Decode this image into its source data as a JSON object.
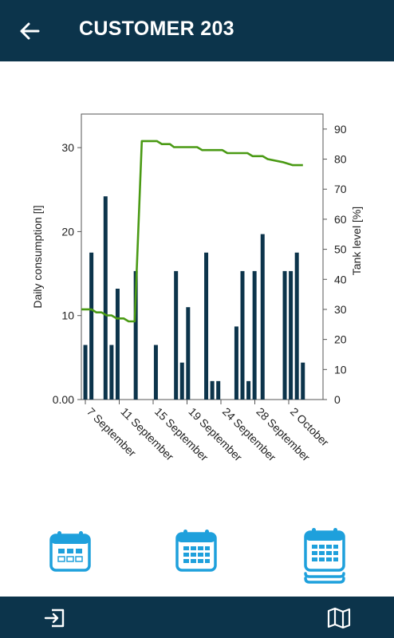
{
  "header": {
    "title": "CUSTOMER 203"
  },
  "colors": {
    "header_bg": "#0c344b",
    "bar": "#0c344b",
    "line": "#4a9a14",
    "tab_icon": "#1ea0dc"
  },
  "icons": {
    "back": "arrow-left-icon",
    "logout": "exit-icon",
    "map": "map-icon",
    "tab_week": "calendar-week-icon",
    "tab_month": "calendar-month-icon",
    "tab_multi": "calendar-stack-icon"
  },
  "chart_data": {
    "type": "bar+line",
    "ylabel_left": "Daily consumption [l]",
    "ylabel_right": "Tank level [%]",
    "yleft_ticks": [
      "0.00",
      "10",
      "20",
      "30"
    ],
    "yright_ticks": [
      "0",
      "10",
      "20",
      "30",
      "40",
      "50",
      "60",
      "70",
      "80",
      "90"
    ],
    "ylim_left": [
      0,
      34
    ],
    "ylim_right": [
      0,
      95
    ],
    "xlim_days": [
      6,
      30
    ],
    "x_ticks": [
      {
        "label": "7 September",
        "day": 7
      },
      {
        "label": "11 September",
        "day": 11
      },
      {
        "label": "15 September",
        "day": 15
      },
      {
        "label": "19 September",
        "day": 19
      },
      {
        "label": "24 September",
        "day": 24
      },
      {
        "label": "28 September",
        "day": 28
      },
      {
        "label": "2 October",
        "day": 32
      }
    ],
    "bars": [
      {
        "day": 6.4,
        "value": 6.5
      },
      {
        "day": 7.0,
        "value": 17.5
      },
      {
        "day": 8.4,
        "value": 24.2
      },
      {
        "day": 9.0,
        "value": 6.5
      },
      {
        "day": 9.6,
        "value": 13.2
      },
      {
        "day": 11.4,
        "value": 15.3
      },
      {
        "day": 13.4,
        "value": 6.5
      },
      {
        "day": 15.4,
        "value": 15.3
      },
      {
        "day": 16.0,
        "value": 4.4
      },
      {
        "day": 16.6,
        "value": 11.0
      },
      {
        "day": 18.4,
        "value": 17.5
      },
      {
        "day": 19.0,
        "value": 2.2
      },
      {
        "day": 19.6,
        "value": 2.2
      },
      {
        "day": 21.4,
        "value": 8.7
      },
      {
        "day": 22.0,
        "value": 15.3
      },
      {
        "day": 22.6,
        "value": 2.2
      },
      {
        "day": 23.2,
        "value": 15.3
      },
      {
        "day": 24.0,
        "value": 19.7
      },
      {
        "day": 26.2,
        "value": 15.3
      },
      {
        "day": 26.8,
        "value": 15.3
      },
      {
        "day": 27.4,
        "value": 17.5
      },
      {
        "day": 28.0,
        "value": 4.4
      }
    ],
    "tank_level": [
      {
        "day": 6.0,
        "value": 30
      },
      {
        "day": 7.0,
        "value": 30
      },
      {
        "day": 7.5,
        "value": 29
      },
      {
        "day": 8.0,
        "value": 29
      },
      {
        "day": 8.5,
        "value": 28
      },
      {
        "day": 9.0,
        "value": 28
      },
      {
        "day": 9.5,
        "value": 27
      },
      {
        "day": 10.2,
        "value": 27
      },
      {
        "day": 10.7,
        "value": 26
      },
      {
        "day": 11.3,
        "value": 26
      },
      {
        "day": 12.0,
        "value": 86
      },
      {
        "day": 13.5,
        "value": 86
      },
      {
        "day": 14.0,
        "value": 85
      },
      {
        "day": 14.8,
        "value": 85
      },
      {
        "day": 15.2,
        "value": 84
      },
      {
        "day": 17.5,
        "value": 84
      },
      {
        "day": 18.0,
        "value": 83
      },
      {
        "day": 20.0,
        "value": 83
      },
      {
        "day": 20.5,
        "value": 82
      },
      {
        "day": 22.5,
        "value": 82
      },
      {
        "day": 23.0,
        "value": 81
      },
      {
        "day": 24.0,
        "value": 81
      },
      {
        "day": 24.5,
        "value": 80
      },
      {
        "day": 26.0,
        "value": 79
      },
      {
        "day": 27.0,
        "value": 78
      },
      {
        "day": 28.0,
        "value": 78
      }
    ],
    "grid": false,
    "legend": "none"
  }
}
